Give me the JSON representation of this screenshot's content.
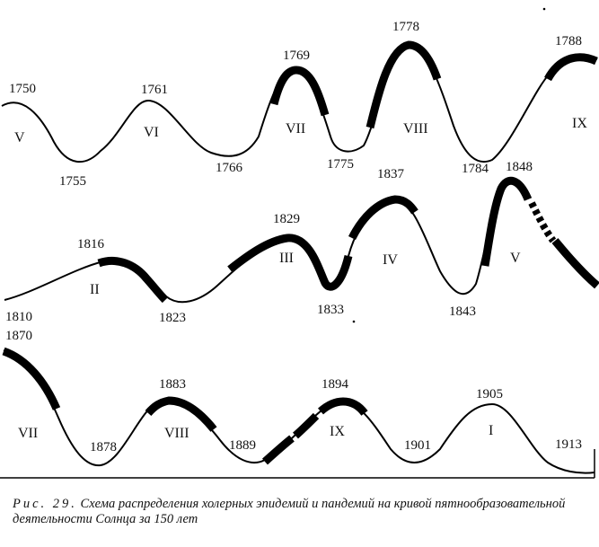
{
  "rows": [
    {
      "years": [
        "1750",
        "1755",
        "1761",
        "1766",
        "1769",
        "1775",
        "1778",
        "1784",
        "1788"
      ],
      "cycles": [
        "V",
        "VI",
        "VII",
        "VIII",
        "IX"
      ]
    },
    {
      "years": [
        "1810",
        "1816",
        "1823",
        "1829",
        "1833",
        "1837",
        "1843",
        "1848"
      ],
      "cycles": [
        "II",
        "III",
        "IV",
        "V"
      ]
    },
    {
      "years": [
        "1870",
        "1878",
        "1883",
        "1889",
        "1894",
        "1901",
        "1905",
        "1913"
      ],
      "cycles": [
        "VII",
        "VIII",
        "IX",
        "I"
      ]
    }
  ],
  "caption": {
    "figure_label": "Рис. 29.",
    "text": "Схема распределения холерных эпидемий и пандемий на кривой пятнообразовательной деятельности Солнца за 150 лет"
  }
}
